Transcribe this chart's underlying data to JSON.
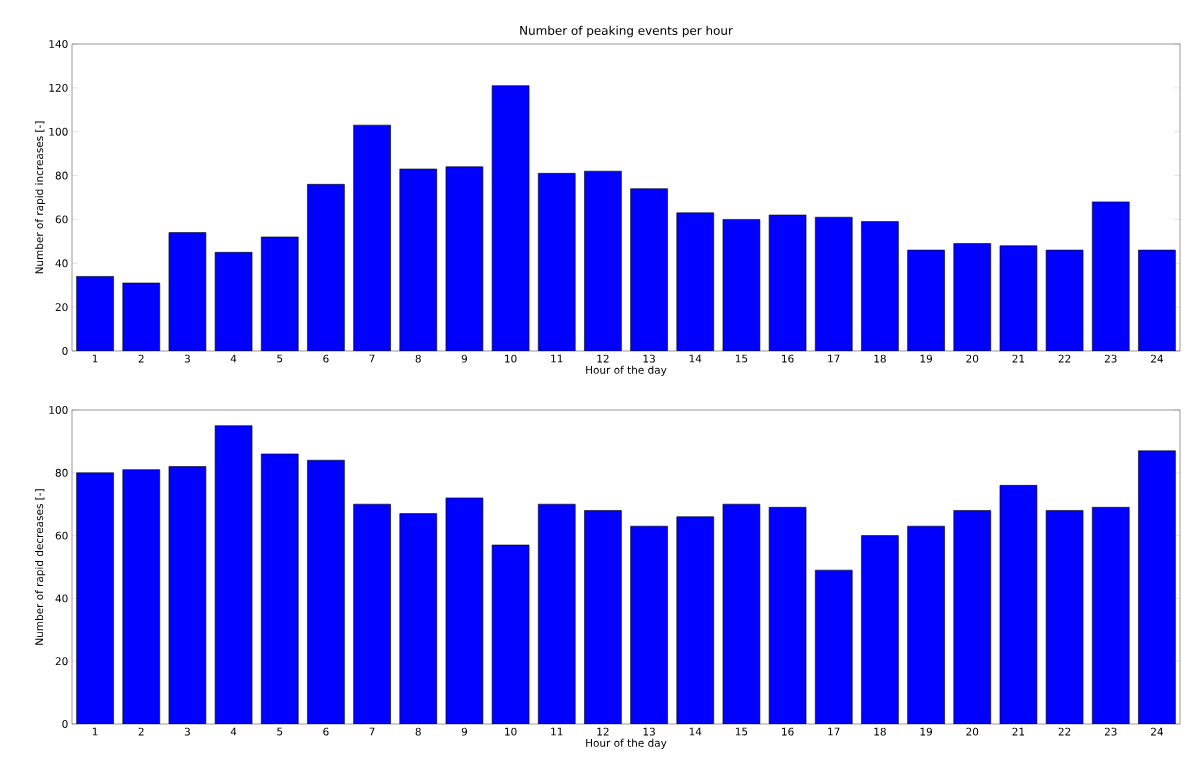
{
  "chart_data": [
    {
      "type": "bar",
      "title": "Number of peaking events per hour",
      "xlabel": "Hour of the day",
      "ylabel": "Number of rapid increases [-]",
      "categories": [
        "1",
        "2",
        "3",
        "4",
        "5",
        "6",
        "7",
        "8",
        "9",
        "10",
        "11",
        "12",
        "13",
        "14",
        "15",
        "16",
        "17",
        "18",
        "19",
        "20",
        "21",
        "22",
        "23",
        "24"
      ],
      "values": [
        34,
        31,
        54,
        45,
        52,
        76,
        103,
        83,
        84,
        121,
        81,
        82,
        74,
        63,
        60,
        62,
        61,
        59,
        46,
        49,
        48,
        46,
        68,
        46
      ],
      "color": "#0000ff",
      "ylim": [
        0,
        140
      ],
      "yticks": [
        0,
        20,
        40,
        60,
        80,
        100,
        120,
        140
      ]
    },
    {
      "type": "bar",
      "xlabel": "Hour of the day",
      "ylabel": "Number of rapid decreases [-]",
      "categories": [
        "1",
        "2",
        "3",
        "4",
        "5",
        "6",
        "7",
        "8",
        "9",
        "10",
        "11",
        "12",
        "13",
        "14",
        "15",
        "16",
        "17",
        "18",
        "19",
        "20",
        "21",
        "22",
        "23",
        "24"
      ],
      "values": [
        80,
        81,
        82,
        95,
        86,
        84,
        70,
        67,
        72,
        57,
        70,
        68,
        63,
        66,
        70,
        69,
        49,
        60,
        63,
        68,
        76,
        68,
        69,
        87
      ],
      "color": "#0000ff",
      "ylim": [
        0,
        100
      ],
      "yticks": [
        0,
        20,
        40,
        60,
        80,
        100
      ]
    }
  ]
}
